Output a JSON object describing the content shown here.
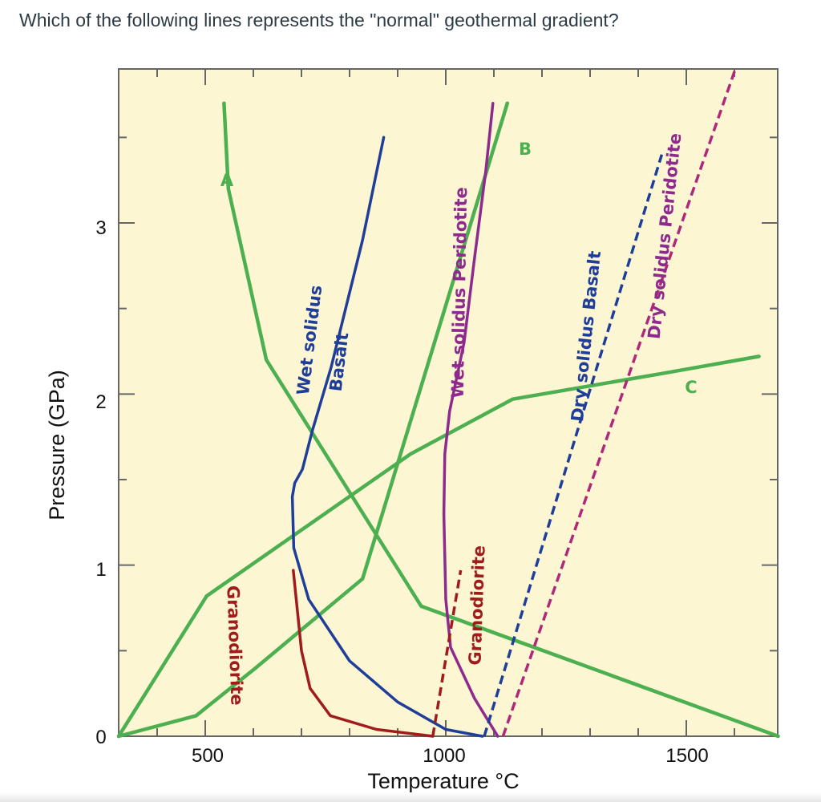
{
  "question": "Which of the following lines represents the \"normal\" geothermal gradient?",
  "chart_data": {
    "type": "line",
    "xlabel": "Temperature °C",
    "ylabel": "Pressure (GPa)",
    "xlim": [
      320,
      1690
    ],
    "ylim": [
      0,
      3.9
    ],
    "xticks": [
      500,
      1000,
      1500
    ],
    "yticks": [
      0,
      1,
      2,
      3
    ],
    "grid": false,
    "colors": {
      "background": "#fdf6d3",
      "geotherm": "#4caf50",
      "wet_basalt": "#1f3e99",
      "wet_peridotite": "#8e2a8e",
      "granodiorite": "#a01c1c",
      "dry_basalt": "#1f3e99",
      "dry_peridotite": "#b0287a",
      "axis_frame": "#666666"
    },
    "series": [
      {
        "name": "A",
        "kind": "geotherm",
        "color": "#4caf50",
        "dashed": false,
        "points": [
          [
            320,
            0
          ],
          [
            481,
            0.12
          ],
          [
            605,
            0.4
          ],
          [
            827,
            0.92
          ],
          [
            1128,
            3.7
          ]
        ]
      },
      {
        "name": "B",
        "kind": "geotherm",
        "color": "#4caf50",
        "dashed": false,
        "points": [
          [
            320,
            0
          ],
          [
            503,
            0.82
          ],
          [
            927,
            1.65
          ],
          [
            1139,
            1.97
          ],
          [
            1450,
            2.12
          ],
          [
            1651,
            2.22
          ]
        ]
      },
      {
        "name": "C",
        "kind": "geotherm",
        "color": "#4caf50",
        "dashed": false,
        "points": [
          [
            1691,
            0
          ],
          [
            949,
            0.76
          ],
          [
            627,
            2.2
          ],
          [
            548,
            3.2
          ],
          [
            539,
            3.7
          ]
        ]
      },
      {
        "name": "Wet solidus Basalt",
        "kind": "solidus",
        "color": "#1f3e99",
        "dashed": false,
        "points": [
          [
            1076,
            0
          ],
          [
            1000,
            0.04
          ],
          [
            900,
            0.2
          ],
          [
            800,
            0.44
          ],
          [
            715,
            0.8
          ],
          [
            684,
            1.1
          ],
          [
            681,
            1.4
          ],
          [
            686,
            1.48
          ],
          [
            702,
            1.56
          ],
          [
            722,
            1.78
          ],
          [
            762,
            2.16
          ],
          [
            827,
            2.9
          ],
          [
            871,
            3.5
          ]
        ]
      },
      {
        "name": "Wet solidus Peridotite",
        "kind": "solidus",
        "color": "#8e2a8e",
        "dashed": false,
        "points": [
          [
            1108,
            0
          ],
          [
            1060,
            0.22
          ],
          [
            1010,
            0.52
          ],
          [
            1000,
            0.8
          ],
          [
            996,
            1.3
          ],
          [
            998,
            1.65
          ],
          [
            1008,
            1.9
          ],
          [
            1038,
            2.3
          ],
          [
            1060,
            2.8
          ],
          [
            1083,
            3.3
          ],
          [
            1098,
            3.7
          ]
        ]
      },
      {
        "name": "Granodiorite (wet)",
        "kind": "solidus",
        "color": "#a01c1c",
        "dashed": false,
        "points": [
          [
            973,
            0
          ],
          [
            856,
            0.04
          ],
          [
            760,
            0.12
          ],
          [
            718,
            0.28
          ],
          [
            700,
            0.5
          ],
          [
            683,
            0.97
          ]
        ]
      },
      {
        "name": "Granodiorite (dry)",
        "kind": "solidus",
        "color": "#a01c1c",
        "dashed": true,
        "points": [
          [
            973,
            0
          ],
          [
            1031,
            0.97
          ]
        ]
      },
      {
        "name": "Dry solidus Basalt",
        "kind": "solidus",
        "color": "#1f3e99",
        "dashed": true,
        "points": [
          [
            1080,
            0
          ],
          [
            1449,
            3.4
          ]
        ]
      },
      {
        "name": "Dry solidus Peridotite",
        "kind": "solidus",
        "color": "#b0287a",
        "dashed": true,
        "points": [
          [
            1119,
            0
          ],
          [
            1602,
            3.9
          ]
        ]
      }
    ],
    "labels": {
      "letters": [
        "A",
        "B",
        "C"
      ],
      "wet_basalt": [
        "Wet solidus",
        "Basalt"
      ],
      "wet_peridotite": "Wet solidus Peridotite",
      "granodiorite_left": "Granodiorite",
      "granodiorite_right": "Granodiorite",
      "dry_basalt": "Dry solidus Basalt",
      "dry_peridotite": "Dry solidus Peridotite"
    }
  }
}
